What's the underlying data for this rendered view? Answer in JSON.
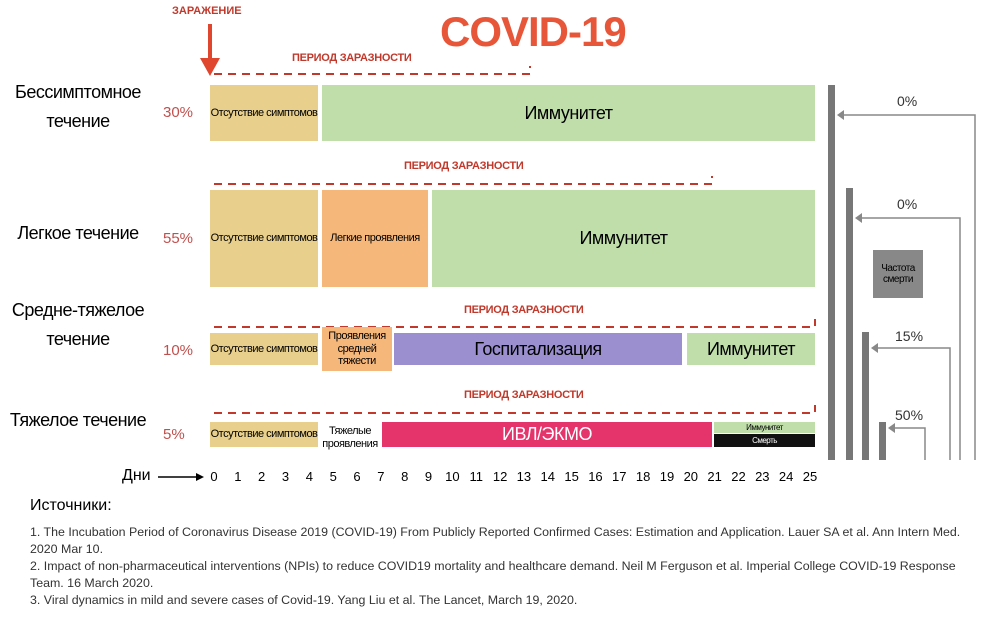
{
  "title": "COVID-19",
  "infection_label": "ЗАРАЖЕНИЕ",
  "days_label": "Дни",
  "days": [
    0,
    1,
    2,
    3,
    4,
    5,
    6,
    7,
    8,
    9,
    10,
    11,
    12,
    13,
    14,
    15,
    16,
    17,
    18,
    19,
    20,
    21,
    22,
    23,
    24,
    25
  ],
  "death_rate_label": "Частота смерти",
  "rows": [
    {
      "name": "Бессимптомное течение",
      "share": "30%",
      "period_label": "ПЕРИОД ЗАРАЗНОСТИ",
      "segments": [
        "Отсутствие симптомов",
        "Иммунитет"
      ],
      "death_rate": "0%"
    },
    {
      "name": "Легкое течение",
      "share": "55%",
      "period_label": "ПЕРИОД ЗАРАЗНОСТИ",
      "segments": [
        "Отсутствие симптомов",
        "Легкие проявления",
        "Иммунитет"
      ],
      "death_rate": "0%"
    },
    {
      "name": "Средне-тяжелое течение",
      "share": "10%",
      "period_label": "ПЕРИОД ЗАРАЗНОСТИ",
      "segments": [
        "Отсутствие симптомов",
        "Проявления средней тяжести",
        "Госпитализация",
        "Иммунитет"
      ],
      "death_rate": "15%"
    },
    {
      "name": "Тяжелое течение",
      "share": "5%",
      "period_label": "ПЕРИОД ЗАРАЗНОСТИ",
      "segments": [
        "Отсутствие симптомов",
        "Тяжелые проявления",
        "ИВЛ/ЭКМО",
        "Иммунитет",
        "Смерть"
      ],
      "death_rate": "50%"
    }
  ],
  "sources": {
    "title": "Источники:",
    "items": [
      "1. The Incubation Period of Coronavirus Disease 2019 (COVID-19) From Publicly Reported Confirmed Cases: Estimation and Application. Lauer SA et al. Ann Intern Med. 2020 Mar 10.",
      "2. Impact of non-pharmaceutical interventions (NPIs) to reduce COVID19 mortality and healthcare demand. Neil M Ferguson et al. Imperial College COVID-19 Response Team. 16 March 2020.",
      "3. Viral dynamics in mild and severe cases of Covid-19. Yang Liu et al. The Lancet, March 19, 2020."
    ]
  }
}
